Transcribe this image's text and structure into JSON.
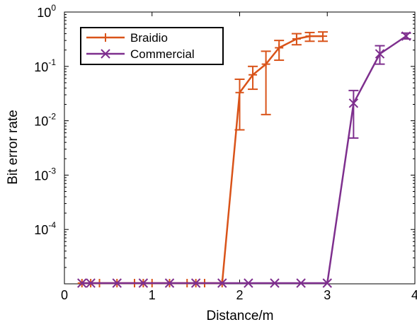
{
  "chart_data": {
    "type": "line",
    "xlabel": "Distance/m",
    "ylabel": "Bit error rate",
    "xlim": [
      0,
      4
    ],
    "ylim_log10": [
      -5,
      0
    ],
    "y_scale": "log",
    "x_ticks": [
      0,
      1,
      2,
      3,
      4
    ],
    "x_tick_labels": [
      "0",
      "1",
      "2",
      "3",
      "4"
    ],
    "y_ticks": [
      {
        "value": 1,
        "base": "10",
        "exp": "0"
      },
      {
        "value": 0.1,
        "base": "10",
        "exp": "-1"
      },
      {
        "value": 0.01,
        "base": "10",
        "exp": "-2"
      },
      {
        "value": 0.001,
        "base": "10",
        "exp": "-3"
      },
      {
        "value": 0.0001,
        "base": "10",
        "exp": "-4"
      }
    ],
    "grid": false,
    "legend_position": "top-left",
    "series": [
      {
        "name": "Braidio",
        "color": "#D95319",
        "marker": "plus",
        "x": [
          0.2,
          0.3,
          0.4,
          0.6,
          0.8,
          0.9,
          1.0,
          1.2,
          1.4,
          1.5,
          1.6,
          1.8,
          2.0,
          2.15,
          2.3,
          2.45,
          2.65,
          2.8,
          2.95
        ],
        "y": [
          null,
          null,
          null,
          null,
          null,
          null,
          null,
          null,
          null,
          null,
          null,
          null,
          0.033,
          0.07,
          0.11,
          0.22,
          0.32,
          0.36,
          0.36
        ],
        "err_low": [
          null,
          null,
          null,
          null,
          null,
          null,
          null,
          null,
          null,
          null,
          null,
          null,
          0.0068,
          0.038,
          0.013,
          0.13,
          0.25,
          0.29,
          0.29
        ],
        "err_high": [
          null,
          null,
          null,
          null,
          null,
          null,
          null,
          null,
          null,
          null,
          null,
          null,
          0.058,
          0.1,
          0.19,
          0.3,
          0.4,
          0.42,
          0.43
        ]
      },
      {
        "name": "Commercial",
        "color": "#7E2F8E",
        "marker": "x",
        "x": [
          0.2,
          0.3,
          0.6,
          0.9,
          1.2,
          1.5,
          1.8,
          2.1,
          2.4,
          2.7,
          3.0,
          3.3,
          3.6,
          3.9
        ],
        "y": [
          null,
          null,
          null,
          null,
          null,
          null,
          null,
          null,
          null,
          null,
          null,
          0.021,
          0.17,
          0.36
        ],
        "err_low": [
          null,
          null,
          null,
          null,
          null,
          null,
          null,
          null,
          null,
          null,
          null,
          0.0048,
          0.11,
          0.32
        ],
        "err_high": [
          null,
          null,
          null,
          null,
          null,
          null,
          null,
          null,
          null,
          null,
          null,
          0.036,
          0.24,
          0.41
        ]
      }
    ]
  }
}
